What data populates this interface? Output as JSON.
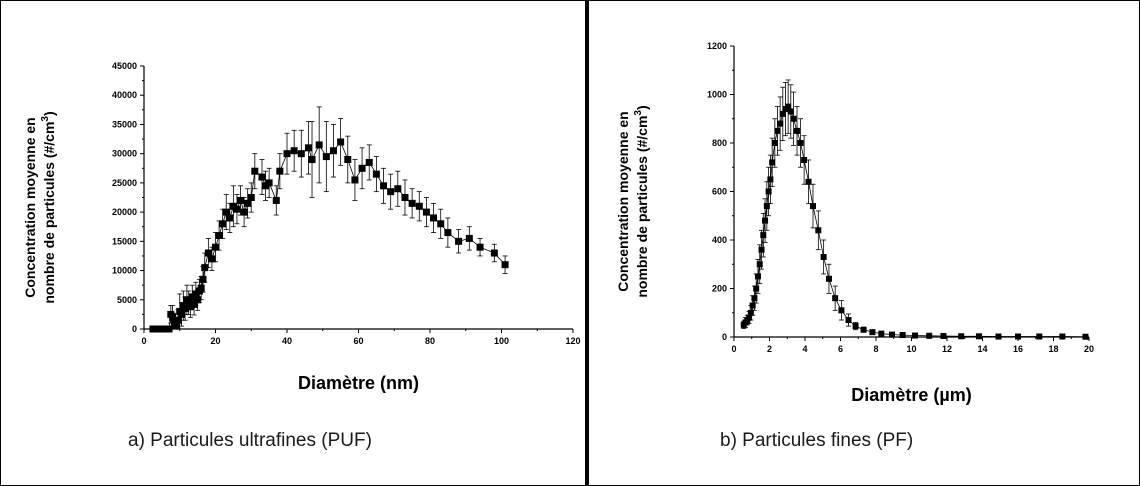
{
  "chart_data": [
    {
      "type": "scatter",
      "caption": "a)  Particules ultrafines (PUF)",
      "xlabel": "Diamètre (nm)",
      "ylabel_line1": "Concentration moyenne en",
      "ylabel_line2_text": "nombre de particules (#/cm",
      "ylabel_line2_sup": "3",
      "ylabel_line2_end": ")",
      "xlim": [
        0,
        120
      ],
      "ylim": [
        0,
        45000
      ],
      "xticks": [
        0,
        20,
        40,
        60,
        80,
        100,
        120
      ],
      "yticks": [
        0,
        5000,
        10000,
        15000,
        20000,
        25000,
        30000,
        35000,
        40000,
        45000
      ],
      "ytick_labels": [
        "0",
        "5000",
        "10000",
        "15000",
        "20000",
        "25000",
        "30000",
        "35000",
        "40000",
        "45000"
      ],
      "x": [
        2.5,
        4,
        5,
        6,
        7,
        7.5,
        8,
        8.5,
        9,
        9.5,
        10,
        10.5,
        11,
        11.5,
        12,
        12.5,
        13,
        13.5,
        14,
        14.5,
        15,
        15.5,
        16,
        16.5,
        17,
        18,
        19,
        20,
        21,
        22,
        23,
        24,
        25,
        26,
        27,
        28,
        29,
        30,
        31,
        33,
        34,
        35,
        37,
        38,
        40,
        42,
        44,
        46,
        47,
        49,
        51,
        53,
        55,
        57,
        59,
        61,
        63,
        65,
        67,
        69,
        71,
        73,
        75,
        77,
        79,
        81,
        83,
        85,
        88,
        91,
        94,
        98,
        101
      ],
      "y": [
        0,
        0,
        0,
        0,
        0,
        2500,
        2000,
        1200,
        500,
        1500,
        3000,
        2500,
        4000,
        3500,
        5000,
        4500,
        3800,
        5500,
        4200,
        6000,
        5000,
        6500,
        7000,
        8500,
        10500,
        13000,
        12000,
        14000,
        16000,
        18000,
        20000,
        19000,
        21000,
        20500,
        22000,
        20000,
        21500,
        22500,
        27000,
        26000,
        24500,
        25000,
        22000,
        27000,
        30000,
        30500,
        30000,
        31000,
        29000,
        31500,
        29500,
        30500,
        32000,
        29000,
        25500,
        27500,
        28500,
        26500,
        24500,
        23500,
        24000,
        22500,
        21500,
        21000,
        20000,
        19000,
        18000,
        16500,
        15000,
        15500,
        14000,
        13000,
        11000
      ],
      "err": [
        0,
        0,
        0,
        0,
        0,
        1500,
        2000,
        1500,
        1200,
        1800,
        3000,
        2000,
        2500,
        2000,
        2500,
        2000,
        1800,
        2000,
        1800,
        2000,
        1800,
        2000,
        2000,
        2200,
        2500,
        2500,
        2000,
        2500,
        2500,
        2500,
        3000,
        2500,
        3500,
        2500,
        2500,
        2500,
        2500,
        2500,
        3000,
        3000,
        2500,
        2500,
        2500,
        3000,
        3500,
        3500,
        4000,
        4500,
        6500,
        6500,
        6000,
        4500,
        4000,
        4000,
        3500,
        3500,
        3000,
        3000,
        3000,
        3000,
        3000,
        3000,
        2500,
        2500,
        2500,
        2500,
        2500,
        2500,
        2000,
        2000,
        1500,
        1500,
        1500
      ]
    },
    {
      "type": "scatter",
      "caption": "b)  Particules fines (PF)",
      "xlabel": "Diamètre (µm)",
      "ylabel_line1": "Concentration moyenne en",
      "ylabel_line2_text": "nombre de particules (#/cm",
      "ylabel_line2_sup": "3",
      "ylabel_line2_end": ")",
      "xlim": [
        0,
        20
      ],
      "ylim": [
        0,
        1200
      ],
      "xticks": [
        0,
        2,
        4,
        6,
        8,
        10,
        12,
        14,
        16,
        18,
        20
      ],
      "yticks": [
        0,
        200,
        400,
        600,
        800,
        1000,
        1200
      ],
      "ytick_labels": [
        "0",
        "200",
        "400",
        "600",
        "800",
        "1000",
        "1200"
      ],
      "x": [
        0.55,
        0.65,
        0.75,
        0.85,
        0.95,
        1.05,
        1.15,
        1.25,
        1.35,
        1.45,
        1.55,
        1.65,
        1.75,
        1.85,
        1.95,
        2.05,
        2.15,
        2.3,
        2.45,
        2.6,
        2.75,
        2.9,
        3.05,
        3.2,
        3.35,
        3.55,
        3.75,
        3.95,
        4.2,
        4.45,
        4.75,
        5.05,
        5.35,
        5.7,
        6.05,
        6.45,
        6.85,
        7.3,
        7.8,
        8.3,
        8.9,
        9.5,
        10.2,
        11.0,
        11.8,
        12.8,
        13.8,
        14.9,
        16.0,
        17.2,
        18.5,
        19.8
      ],
      "y": [
        50,
        60,
        70,
        80,
        100,
        130,
        160,
        200,
        250,
        300,
        360,
        420,
        480,
        540,
        600,
        650,
        720,
        800,
        850,
        880,
        920,
        940,
        950,
        930,
        900,
        850,
        800,
        730,
        640,
        540,
        440,
        330,
        240,
        160,
        110,
        70,
        45,
        30,
        20,
        14,
        10,
        8,
        6,
        5,
        4,
        3,
        3,
        2,
        2,
        2,
        2,
        1
      ],
      "err": [
        15,
        20,
        20,
        25,
        30,
        40,
        50,
        60,
        70,
        80,
        80,
        90,
        90,
        100,
        100,
        100,
        100,
        100,
        100,
        110,
        110,
        110,
        110,
        110,
        110,
        100,
        100,
        100,
        90,
        90,
        80,
        70,
        60,
        50,
        40,
        25,
        15,
        10,
        8,
        6,
        5,
        4,
        3,
        3,
        3,
        2,
        2,
        2,
        2,
        2,
        2,
        1
      ]
    }
  ]
}
